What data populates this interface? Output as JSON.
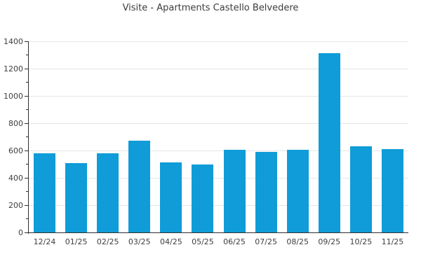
{
  "chart_data": {
    "type": "bar",
    "title": "Visite - Apartments Castello Belvedere",
    "categories": [
      "12/24",
      "01/25",
      "02/25",
      "03/25",
      "04/25",
      "05/25",
      "06/25",
      "07/25",
      "08/25",
      "09/25",
      "10/25",
      "11/25"
    ],
    "values": [
      580,
      510,
      580,
      670,
      515,
      500,
      605,
      590,
      605,
      1315,
      630,
      610
    ],
    "xlabel": "",
    "ylabel": "",
    "ylim": [
      0,
      1400
    ],
    "yticks": [
      0,
      200,
      400,
      600,
      800,
      1000,
      1200,
      1400
    ],
    "minor_tick_step": 100,
    "grid": "horizontal-major-only",
    "legend": "none",
    "colors": {
      "bar": "#0f9cd8",
      "gridline": "#e5e5e5",
      "axis": "#2f2f2f",
      "tick_text": "#3e3e3e",
      "title_text": "#3c3c3c",
      "background": "#ffffff"
    }
  }
}
